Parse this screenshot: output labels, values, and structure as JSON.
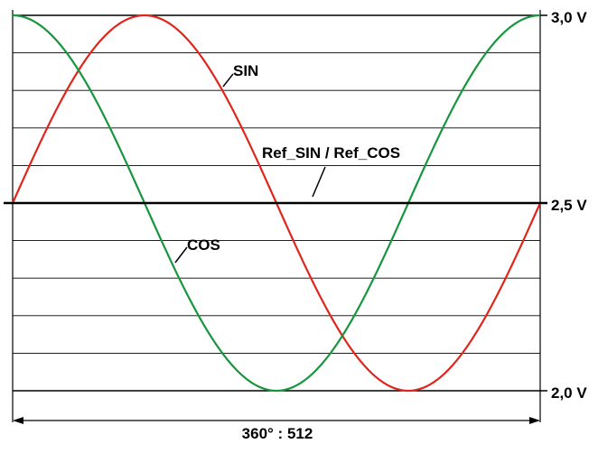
{
  "chart_data": {
    "type": "line",
    "series": [
      {
        "name": "SIN",
        "color": "#e0251b",
        "function": "sin",
        "offset": 2.5,
        "amplitude": 0.5
      },
      {
        "name": "COS",
        "color": "#16963e",
        "function": "cos",
        "offset": 2.5,
        "amplitude": 0.5
      }
    ],
    "reference": {
      "name": "Ref_SIN / Ref_COS",
      "value": 2.5
    },
    "x_period_label": "360° : 512",
    "x_range_deg": [
      0,
      360
    ],
    "ylim": [
      2.0,
      3.0
    ],
    "y_ticks": [
      {
        "value": 3.0,
        "label": "3,0 V"
      },
      {
        "value": 2.5,
        "label": "2,5 V"
      },
      {
        "value": 2.0,
        "label": "2,0 V"
      }
    ],
    "grid": true,
    "grid_line_count": 10
  }
}
